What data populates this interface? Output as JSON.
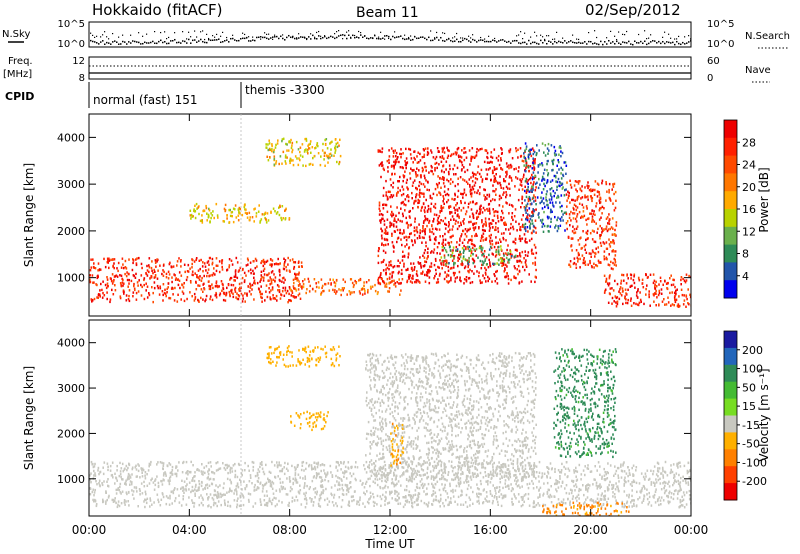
{
  "header": {
    "station": "Hokkaido (fitACF)",
    "beam": "Beam 11",
    "date": "02/Sep/2012"
  },
  "top_panels": {
    "nsky_label": "N.Sky",
    "nsky_ticks": [
      "10^5",
      "10^0"
    ],
    "nsearch_label": "N.Search",
    "nsearch_ticks": [
      "10^5",
      "10^0"
    ],
    "freq_label_1": "Freq.",
    "freq_label_2": "[MHz]",
    "freq_ticks": [
      "12",
      "8"
    ],
    "nave_label": "Nave",
    "nave_ticks": [
      "60",
      "0"
    ],
    "cpid_label": "CPID",
    "cpid_segments": [
      {
        "label": "normal (fast) 151",
        "start_h": 0.0,
        "end_h": 6.0
      },
      {
        "label": "themis -3300",
        "start_h": 6.0,
        "end_h": 24.0
      }
    ]
  },
  "axes": {
    "x_label": "Time UT",
    "x_ticks": [
      "00:00",
      "04:00",
      "08:00",
      "12:00",
      "16:00",
      "20:00",
      "00:00"
    ],
    "x_range_h": [
      0,
      24
    ],
    "y_label": "Slant Range [km]",
    "y_ticks": [
      "1000",
      "2000",
      "3000",
      "4000"
    ],
    "y_range_km": [
      180,
      4500
    ]
  },
  "colorbars": {
    "power": {
      "label": "Power [dB]",
      "tick_labels": [
        "4",
        "8",
        "12",
        "16",
        "20",
        "24",
        "28"
      ],
      "colors": [
        "#0000ee",
        "#2255aa",
        "#2e8b57",
        "#6ab04c",
        "#b8d200",
        "#ffaa00",
        "#ff7700",
        "#ff4a00",
        "#ff2000",
        "#ee0000"
      ]
    },
    "velocity": {
      "label": "Velocity [m s⁻¹]",
      "tick_labels": [
        "200",
        "100",
        "50",
        "15",
        "-15",
        "-50",
        "-100",
        "-200"
      ],
      "colors": [
        "#1a1aa0",
        "#2266bb",
        "#2e8b57",
        "#44bb33",
        "#77dd22",
        "#c8c8c0",
        "#ffb000",
        "#ff8000",
        "#ff4000",
        "#ee0000"
      ]
    }
  },
  "chart_data": [
    {
      "type": "heatmap",
      "title": "Power",
      "x_units": "hours UT",
      "y_units": "km",
      "xlim": [
        0,
        24
      ],
      "ylim": [
        180,
        4500
      ],
      "features": [
        {
          "t0": 0,
          "t1": 8.5,
          "r0": 500,
          "r1": 1450,
          "value_db": 25
        },
        {
          "t0": 8,
          "t1": 12.5,
          "r0": 650,
          "r1": 1000,
          "value_db": 21
        },
        {
          "t0": 11.5,
          "t1": 17.8,
          "r0": 900,
          "r1": 3800,
          "value_db": 27
        },
        {
          "t0": 17.3,
          "t1": 19,
          "r0": 2000,
          "r1": 3900,
          "value_db": 6
        },
        {
          "t0": 19,
          "t1": 21,
          "r0": 1200,
          "r1": 3100,
          "value_db": 24
        },
        {
          "t0": 20.5,
          "t1": 24,
          "r0": 400,
          "r1": 1100,
          "value_db": 25
        },
        {
          "t0": 7,
          "t1": 10,
          "r0": 3400,
          "r1": 4000,
          "value_db": 15
        },
        {
          "t0": 4,
          "t1": 8,
          "r0": 2200,
          "r1": 2600,
          "value_db": 16
        },
        {
          "t0": 14,
          "t1": 17,
          "r0": 1300,
          "r1": 1700,
          "value_db": 10
        }
      ]
    },
    {
      "type": "heatmap",
      "title": "Velocity",
      "x_units": "hours UT",
      "y_units": "km",
      "xlim": [
        0,
        24
      ],
      "ylim": [
        180,
        4500
      ],
      "features": [
        {
          "t0": 0,
          "t1": 24,
          "r0": 400,
          "r1": 1400,
          "value_ms": 0
        },
        {
          "t0": 11,
          "t1": 17.8,
          "r0": 1000,
          "r1": 3800,
          "value_ms": 0
        },
        {
          "t0": 7,
          "t1": 10,
          "r0": 3500,
          "r1": 3950,
          "value_ms": -60
        },
        {
          "t0": 12,
          "t1": 12.5,
          "r0": 1300,
          "r1": 2300,
          "value_ms": -70
        },
        {
          "t0": 8,
          "t1": 9.5,
          "r0": 2100,
          "r1": 2500,
          "value_ms": -60
        },
        {
          "t0": 18.5,
          "t1": 21,
          "r0": 1500,
          "r1": 3900,
          "value_ms": 40
        },
        {
          "t0": 18,
          "t1": 21.5,
          "r0": 200,
          "r1": 500,
          "value_ms": -80
        }
      ]
    }
  ]
}
